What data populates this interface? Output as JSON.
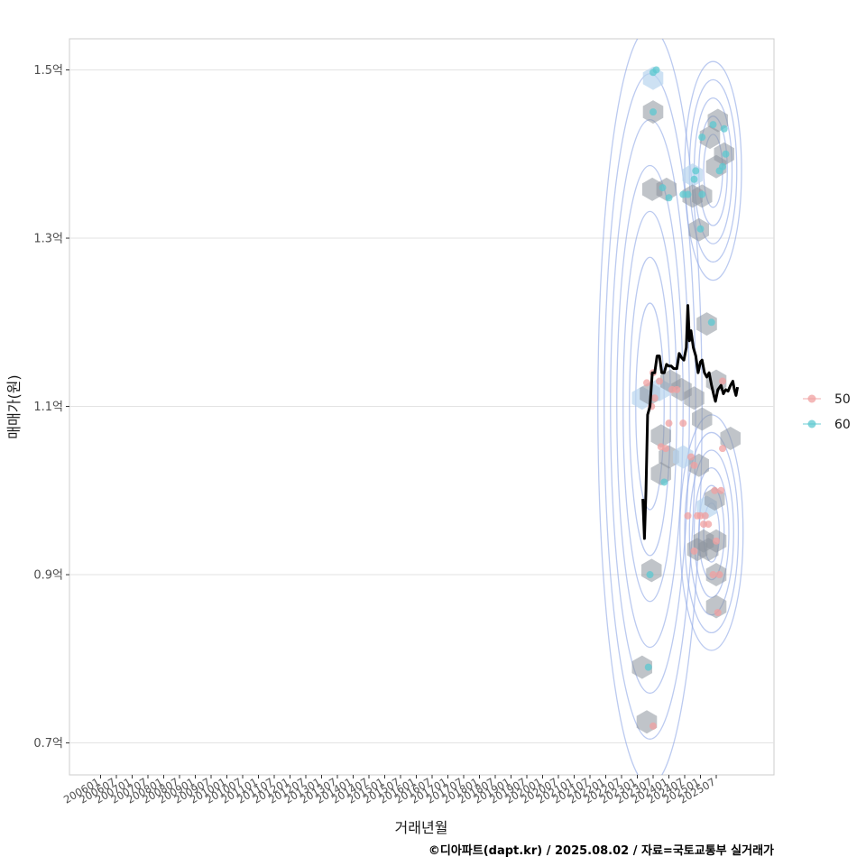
{
  "chart_data": {
    "type": "scatter",
    "title": "",
    "xlabel": "거래년월",
    "ylabel": "매매가(원)",
    "caption": "©디아파트(dapt.kr) / 2025.08.02 / 자료=국토교통부 실거래가",
    "x_tick_labels": [
      "200601",
      "200607",
      "200701",
      "200707",
      "200801",
      "200807",
      "200901",
      "200907",
      "201001",
      "201007",
      "201101",
      "201107",
      "201201",
      "201207",
      "201301",
      "201307",
      "201401",
      "201407",
      "201501",
      "201507",
      "201601",
      "201607",
      "201701",
      "201707",
      "201801",
      "201807",
      "201901",
      "201907",
      "202001",
      "202007",
      "202101",
      "202107",
      "202201",
      "202207",
      "202301",
      "202307",
      "202401",
      "202407",
      "202501",
      "202507"
    ],
    "y_ticks": [
      {
        "value": 0.7,
        "label": "0.7억"
      },
      {
        "value": 0.9,
        "label": "0.9억"
      },
      {
        "value": 1.1,
        "label": "1.1억"
      },
      {
        "value": 1.3,
        "label": "1.3억"
      },
      {
        "value": 1.5,
        "label": "1.5억"
      }
    ],
    "ylim": [
      0.662,
      1.537
    ],
    "legend": {
      "position": "right",
      "entries": [
        {
          "label": "50",
          "color": "#f0a0a0"
        },
        {
          "label": "60",
          "color": "#5cc8d0"
        }
      ]
    },
    "colors": {
      "group_50": "#f0a0a0",
      "group_60": "#5cc8d0",
      "hexbin": "#8c939c",
      "hexbin_light": "#b8d4ee",
      "contour": "#8ea6e6",
      "trend": "#000000",
      "grid": "#e3e3e3",
      "panel_border": "#cccccc"
    },
    "series": [
      {
        "name": "50",
        "points": [
          [
            34.6,
            1.128
          ],
          [
            35.0,
            1.14
          ],
          [
            34.9,
            1.1
          ],
          [
            35.1,
            1.11
          ],
          [
            35.4,
            1.13
          ],
          [
            36.0,
            1.08
          ],
          [
            35.5,
            1.052
          ],
          [
            35.8,
            1.05
          ],
          [
            36.2,
            1.12
          ],
          [
            36.5,
            1.12
          ],
          [
            36.9,
            1.08
          ],
          [
            37.4,
            1.04
          ],
          [
            37.6,
            1.03
          ],
          [
            37.2,
            0.97
          ],
          [
            37.8,
            0.97
          ],
          [
            38.0,
            0.97
          ],
          [
            38.2,
            0.96
          ],
          [
            38.5,
            0.96
          ],
          [
            38.3,
            0.97
          ],
          [
            38.9,
            1.0
          ],
          [
            39.3,
            1.0
          ],
          [
            38.8,
            0.9
          ],
          [
            39.2,
            0.9
          ],
          [
            39.0,
            0.94
          ],
          [
            39.1,
            0.855
          ],
          [
            39.4,
            1.05
          ],
          [
            39.4,
            1.13
          ],
          [
            37.6,
            0.928
          ],
          [
            35.0,
            0.72
          ]
        ]
      },
      {
        "name": "60",
        "points": [
          [
            35.0,
            1.497
          ],
          [
            35.2,
            1.5
          ],
          [
            35.0,
            1.45
          ],
          [
            35.6,
            1.36
          ],
          [
            36.0,
            1.348
          ],
          [
            36.9,
            1.352
          ],
          [
            37.2,
            1.352
          ],
          [
            37.6,
            1.37
          ],
          [
            37.7,
            1.38
          ],
          [
            38.1,
            1.352
          ],
          [
            38.0,
            1.311
          ],
          [
            38.1,
            1.42
          ],
          [
            38.8,
            1.435
          ],
          [
            39.2,
            1.38
          ],
          [
            39.4,
            1.385
          ],
          [
            39.5,
            1.43
          ],
          [
            39.6,
            1.4
          ],
          [
            38.7,
            1.2
          ],
          [
            34.8,
            0.9
          ],
          [
            34.7,
            0.79
          ],
          [
            35.7,
            1.01
          ]
        ]
      },
      {
        "name": "monthly_average",
        "points": [
          [
            34.35,
            0.99
          ],
          [
            34.45,
            0.943
          ],
          [
            34.55,
            1.0
          ],
          [
            34.65,
            1.09
          ],
          [
            34.8,
            1.1
          ],
          [
            34.95,
            1.14
          ],
          [
            35.1,
            1.14
          ],
          [
            35.25,
            1.16
          ],
          [
            35.4,
            1.16
          ],
          [
            35.55,
            1.14
          ],
          [
            35.7,
            1.14
          ],
          [
            35.85,
            1.15
          ],
          [
            36.0,
            1.148
          ],
          [
            36.15,
            1.148
          ],
          [
            36.3,
            1.145
          ],
          [
            36.5,
            1.145
          ],
          [
            36.65,
            1.163
          ],
          [
            36.8,
            1.158
          ],
          [
            36.95,
            1.155
          ],
          [
            37.1,
            1.17
          ],
          [
            37.2,
            1.22
          ],
          [
            37.3,
            1.178
          ],
          [
            37.4,
            1.19
          ],
          [
            37.55,
            1.17
          ],
          [
            37.7,
            1.16
          ],
          [
            37.85,
            1.14
          ],
          [
            38.0,
            1.153
          ],
          [
            38.1,
            1.155
          ],
          [
            38.25,
            1.14
          ],
          [
            38.4,
            1.135
          ],
          [
            38.55,
            1.14
          ],
          [
            38.7,
            1.125
          ],
          [
            38.85,
            1.113
          ],
          [
            38.95,
            1.106
          ],
          [
            39.1,
            1.12
          ],
          [
            39.3,
            1.125
          ],
          [
            39.45,
            1.115
          ],
          [
            39.6,
            1.12
          ],
          [
            39.75,
            1.118
          ],
          [
            39.9,
            1.125
          ],
          [
            40.05,
            1.13
          ],
          [
            40.15,
            1.12
          ],
          [
            40.25,
            1.113
          ],
          [
            40.35,
            1.123
          ]
        ]
      }
    ],
    "hexbins": [
      [
        35.0,
        1.49,
        "light"
      ],
      [
        35.0,
        1.45,
        "dark"
      ],
      [
        34.95,
        1.358,
        "dark"
      ],
      [
        35.85,
        1.358,
        "dark"
      ],
      [
        37.5,
        1.375,
        "light"
      ],
      [
        37.5,
        1.35,
        "dark"
      ],
      [
        38.1,
        1.35,
        "dark"
      ],
      [
        37.9,
        1.31,
        "dark"
      ],
      [
        38.6,
        1.42,
        "dark"
      ],
      [
        39.1,
        1.44,
        "dark"
      ],
      [
        39.5,
        1.4,
        "dark"
      ],
      [
        39.0,
        1.385,
        "dark"
      ],
      [
        38.4,
        1.198,
        "dark"
      ],
      [
        39.0,
        1.13,
        "dark"
      ],
      [
        34.3,
        1.11,
        "light"
      ],
      [
        34.8,
        1.115,
        "dark"
      ],
      [
        35.4,
        1.12,
        "light"
      ],
      [
        36.1,
        1.13,
        "dark"
      ],
      [
        36.8,
        1.12,
        "dark"
      ],
      [
        37.6,
        1.11,
        "dark"
      ],
      [
        38.1,
        1.085,
        "dark"
      ],
      [
        35.5,
        1.065,
        "dark"
      ],
      [
        36.0,
        1.04,
        "dark"
      ],
      [
        36.9,
        1.04,
        "light"
      ],
      [
        37.9,
        1.03,
        "dark"
      ],
      [
        35.5,
        1.02,
        "dark"
      ],
      [
        38.4,
        0.98,
        "light"
      ],
      [
        38.9,
        0.99,
        "dark"
      ],
      [
        38.2,
        0.94,
        "dark"
      ],
      [
        39.0,
        0.94,
        "dark"
      ],
      [
        38.5,
        0.93,
        "dark"
      ],
      [
        37.8,
        0.93,
        "dark"
      ],
      [
        39.0,
        0.9,
        "dark"
      ],
      [
        34.9,
        0.905,
        "dark"
      ],
      [
        39.0,
        0.862,
        "dark"
      ],
      [
        34.3,
        0.79,
        "dark"
      ],
      [
        34.6,
        0.725,
        "dark"
      ],
      [
        39.9,
        1.062,
        "dark"
      ]
    ],
    "density_contours": [
      {
        "center": [
          34.8,
          1.1
        ],
        "radii": [
          0.9,
          1.3,
          1.7,
          2.1,
          2.5,
          2.9,
          3.3
        ],
        "spread_y": 0.45
      },
      {
        "center": [
          38.8,
          1.38
        ],
        "radii": [
          0.6,
          0.9,
          1.2,
          1.5,
          1.8
        ],
        "spread_y": 0.13
      },
      {
        "center": [
          38.7,
          0.95
        ],
        "radii": [
          0.5,
          0.8,
          1.1,
          1.4,
          1.7,
          2.0
        ],
        "spread_y": 0.14
      }
    ]
  }
}
